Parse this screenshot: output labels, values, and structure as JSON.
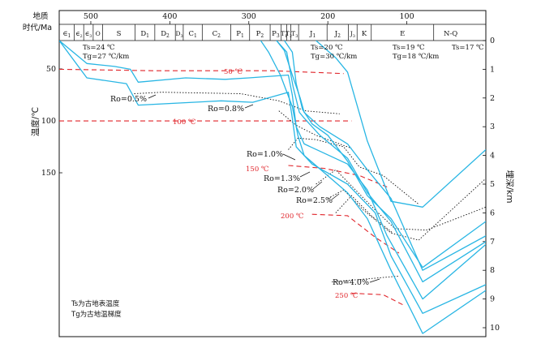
{
  "header": {
    "title_line1": "地质",
    "title_line2": "时代/Ma"
  },
  "axes": {
    "left_label": "温度/℃",
    "right_label": "埋深/km",
    "time_ticks": [
      "500",
      "400",
      "300",
      "200",
      "100"
    ],
    "temp_ticks": [
      "50",
      "100",
      "150"
    ],
    "depth_ticks": [
      "0",
      "1",
      "2",
      "3",
      "4",
      "5",
      "6",
      "7",
      "8",
      "9",
      "10"
    ]
  },
  "periods": [
    {
      "label": "∈1",
      "main": "∈",
      "sub": "1"
    },
    {
      "label": "∈2",
      "main": "∈",
      "sub": "2"
    },
    {
      "label": "∈3",
      "main": "∈",
      "sub": "3"
    },
    {
      "label": "O",
      "main": "O",
      "sub": ""
    },
    {
      "label": "S",
      "main": "S",
      "sub": ""
    },
    {
      "label": "D1",
      "main": "D",
      "sub": "1"
    },
    {
      "label": "D2",
      "main": "D",
      "sub": "2"
    },
    {
      "label": "D3",
      "main": "D",
      "sub": "3"
    },
    {
      "label": "C1",
      "main": "C",
      "sub": "1"
    },
    {
      "label": "C2",
      "main": "C",
      "sub": "2"
    },
    {
      "label": "P1",
      "main": "P",
      "sub": "1"
    },
    {
      "label": "P2",
      "main": "P",
      "sub": "2"
    },
    {
      "label": "P3",
      "main": "P",
      "sub": "3"
    },
    {
      "label": "T1",
      "main": "T",
      "sub": "1"
    },
    {
      "label": "T2",
      "main": "T",
      "sub": "2"
    },
    {
      "label": "T3",
      "main": "T",
      "sub": "3"
    },
    {
      "label": "J1",
      "main": "J",
      "sub": "1"
    },
    {
      "label": "J2",
      "main": "J",
      "sub": "2"
    },
    {
      "label": "J3",
      "main": "J",
      "sub": "3"
    },
    {
      "label": "K",
      "main": "K",
      "sub": ""
    },
    {
      "label": "E",
      "main": "E",
      "sub": ""
    },
    {
      "label": "N-Q",
      "main": "N-Q",
      "sub": ""
    }
  ],
  "paleo_params": [
    {
      "ts": "Ts=24 ℃",
      "tg": "Tg=27 ℃/km"
    },
    {
      "ts": "Ts=20 ℃",
      "tg": "Tg=30 ℃/km"
    },
    {
      "ts": "Ts=19 ℃",
      "tg": "Tg=18 ℃/km"
    },
    {
      "ts": "Ts=17 ℃",
      "tg": ""
    }
  ],
  "isotherms": [
    "50 ℃",
    "100 ℃",
    "150 ℃",
    "200 ℃",
    "250 ℃"
  ],
  "ro_labels": [
    "Ro=0.5%",
    "Ro=0.8%",
    "Ro=1.0%",
    "Ro=1.3%",
    "Ro=2.0%",
    "Ro=2.5%",
    "Ro=4.0%"
  ],
  "legend": {
    "line1": "Ts为古地表温度",
    "line2": "Tg为古地温梯度"
  },
  "colors": {
    "burial": "#29b6e4",
    "isotherm": "#e0242a",
    "ro": "#111111",
    "frame": "#111111"
  },
  "chart_data": {
    "type": "diagram",
    "time_axis": {
      "unit": "Ma",
      "range": [
        540,
        0
      ]
    },
    "depth_axis": {
      "unit": "km",
      "range": [
        0,
        10
      ]
    },
    "temperature_axis": {
      "unit": "℃",
      "ticks": [
        50,
        100,
        150
      ]
    },
    "burial_curves": [
      {
        "points": [
          [
            540,
            0
          ],
          [
            505,
            0.8
          ],
          [
            470,
            0.9
          ],
          [
            450,
            1.0
          ],
          [
            440,
            1.45
          ],
          [
            380,
            1.3
          ],
          [
            330,
            1.35
          ],
          [
            300,
            1.3
          ],
          [
            250,
            1.2
          ],
          [
            245,
            1.9
          ],
          [
            240,
            3.0
          ],
          [
            230,
            3.6
          ],
          [
            175,
            4.3
          ],
          [
            150,
            5.2
          ],
          [
            125,
            6.8
          ],
          [
            80,
            9.0
          ],
          [
            0,
            7.1
          ]
        ]
      },
      {
        "points": [
          [
            540,
            0
          ],
          [
            505,
            1.3
          ],
          [
            455,
            1.5
          ],
          [
            440,
            2.25
          ],
          [
            335,
            2.1
          ],
          [
            295,
            2.15
          ],
          [
            250,
            1.8
          ],
          [
            245,
            2.7
          ],
          [
            240,
            3.7
          ],
          [
            220,
            4.3
          ],
          [
            175,
            5.0
          ],
          [
            140,
            6.0
          ],
          [
            120,
            7.5
          ],
          [
            80,
            9.5
          ],
          [
            0,
            8.5
          ]
        ]
      },
      {
        "points": [
          [
            285,
            0
          ],
          [
            275,
            0.4
          ],
          [
            260,
            1.2
          ],
          [
            245,
            2.3
          ],
          [
            238,
            3.3
          ],
          [
            230,
            4.0
          ],
          [
            175,
            5.3
          ],
          [
            150,
            6.2
          ],
          [
            120,
            8.0
          ],
          [
            80,
            10.2
          ],
          [
            0,
            8.7
          ]
        ]
      },
      {
        "points": [
          [
            265,
            0
          ],
          [
            255,
            0.35
          ],
          [
            245,
            1.2
          ],
          [
            235,
            2.0
          ],
          [
            230,
            2.5
          ],
          [
            210,
            3.0
          ],
          [
            175,
            3.6
          ],
          [
            150,
            4.5
          ],
          [
            120,
            5.5
          ],
          [
            80,
            8.0
          ],
          [
            0,
            6.8
          ]
        ]
      },
      {
        "points": [
          [
            265,
            0
          ],
          [
            252,
            0.4
          ],
          [
            244,
            1.6
          ],
          [
            236,
            2.5
          ],
          [
            230,
            2.7
          ],
          [
            210,
            3.3
          ],
          [
            175,
            4.1
          ],
          [
            150,
            5.3
          ],
          [
            120,
            6.3
          ],
          [
            80,
            8.4
          ],
          [
            0,
            7.0
          ]
        ]
      },
      {
        "points": [
          [
            255,
            0
          ],
          [
            245,
            0.4
          ],
          [
            240,
            1.5
          ],
          [
            232,
            2.4
          ],
          [
            220,
            2.9
          ],
          [
            200,
            3.3
          ],
          [
            175,
            4.2
          ],
          [
            150,
            5.4
          ],
          [
            120,
            6.2
          ],
          [
            80,
            7.9
          ],
          [
            0,
            6.3
          ]
        ]
      },
      {
        "points": [
          [
            215,
            0
          ],
          [
            190,
            0.6
          ],
          [
            175,
            1.1
          ],
          [
            150,
            3.5
          ],
          [
            120,
            5.6
          ],
          [
            80,
            5.8
          ],
          [
            0,
            3.8
          ]
        ]
      }
    ],
    "isotherm_lines": [
      {
        "label": "50 ℃",
        "points": [
          [
            540,
            1.0
          ],
          [
            420,
            1.05
          ],
          [
            270,
            1.05
          ],
          [
            180,
            1.15
          ]
        ]
      },
      {
        "label": "100 ℃",
        "points": [
          [
            540,
            2.8
          ],
          [
            360,
            2.8
          ],
          [
            200,
            2.8
          ],
          [
            170,
            2.8
          ]
        ]
      },
      {
        "label": "150 ℃",
        "points": [
          [
            250,
            4.35
          ],
          [
            205,
            4.45
          ],
          [
            160,
            4.7
          ],
          [
            125,
            5.1
          ]
        ]
      },
      {
        "label": "200 ℃",
        "points": [
          [
            220,
            6.05
          ],
          [
            175,
            6.1
          ],
          [
            140,
            6.85
          ],
          [
            110,
            7.4
          ]
        ]
      },
      {
        "label": "250 ℃",
        "points": [
          [
            170,
            8.8
          ],
          [
            130,
            8.85
          ],
          [
            105,
            9.2
          ]
        ]
      }
    ],
    "ro_lines": [
      {
        "label": "Ro=0.5%",
        "points": [
          [
            445,
            1.85
          ],
          [
            410,
            1.8
          ],
          [
            310,
            1.85
          ],
          [
            262,
            2.1
          ],
          [
            228,
            2.45
          ],
          [
            185,
            2.55
          ]
        ]
      },
      {
        "label": "Ro=0.8%",
        "points": [
          [
            262,
            2.45
          ],
          [
            240,
            2.95
          ],
          [
            215,
            3.3
          ],
          [
            190,
            3.55
          ],
          [
            170,
            3.75
          ]
        ]
      },
      {
        "label": "Ro=1.0%",
        "points": [
          [
            250,
            3.8
          ],
          [
            238,
            3.4
          ],
          [
            215,
            3.45
          ],
          [
            180,
            3.7
          ],
          [
            160,
            4.4
          ],
          [
            130,
            4.7
          ],
          [
            85,
            5.7
          ]
        ]
      },
      {
        "label": "Ro=1.3%",
        "points": [
          [
            215,
            5.0
          ],
          [
            190,
            4.5
          ],
          [
            165,
            5.2
          ],
          [
            140,
            5.9
          ],
          [
            115,
            6.55
          ],
          [
            75,
            6.6
          ],
          [
            0,
            5.8
          ]
        ]
      },
      {
        "label": "Ro=2.0%",
        "points": [
          [
            200,
            5.5
          ],
          [
            180,
            5.2
          ],
          [
            155,
            5.9
          ],
          [
            120,
            6.7
          ],
          [
            85,
            6.95
          ],
          [
            0,
            4.8
          ]
        ]
      },
      {
        "label": "Ro=2.5%",
        "points": [
          [
            190,
            6.0
          ],
          [
            170,
            5.4
          ],
          [
            145,
            6.1
          ],
          [
            118,
            6.7
          ]
        ]
      },
      {
        "label": "Ro=4.0%",
        "points": [
          [
            195,
            8.4
          ],
          [
            150,
            8.3
          ],
          [
            110,
            8.2
          ]
        ]
      }
    ]
  }
}
